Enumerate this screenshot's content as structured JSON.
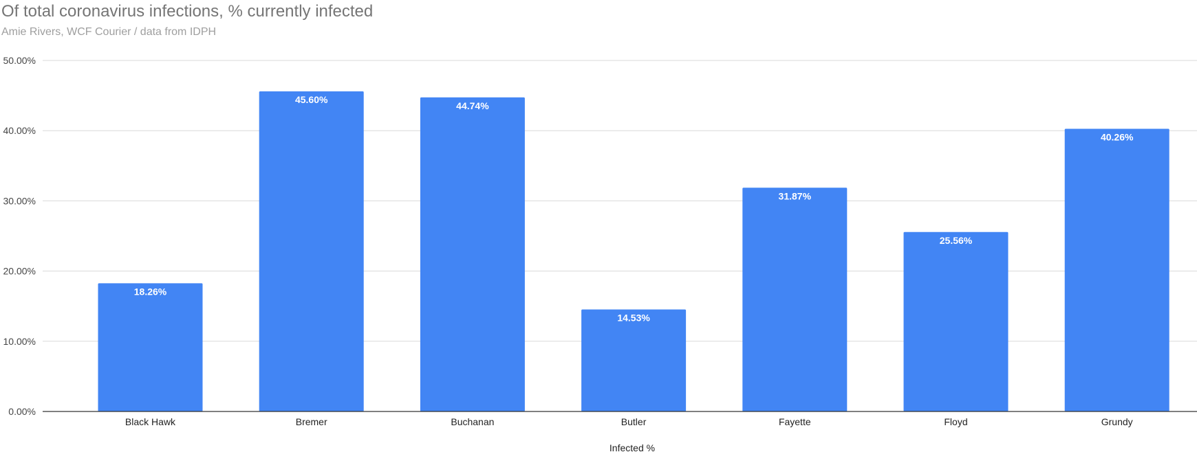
{
  "chart_data": {
    "type": "bar",
    "title": "Of total coronavirus infections, % currently infected",
    "subtitle": "Amie Rivers, WCF Courier / data from IDPH",
    "xlabel": "Infected %",
    "ylabel": "",
    "ylim": [
      0,
      50
    ],
    "yticks": [
      "0.00%",
      "10.00%",
      "20.00%",
      "30.00%",
      "40.00%",
      "50.00%"
    ],
    "categories": [
      "Black Hawk",
      "Bremer",
      "Buchanan",
      "Butler",
      "Fayette",
      "Floyd",
      "Grundy"
    ],
    "values": [
      18.26,
      45.6,
      44.74,
      14.53,
      31.87,
      25.56,
      40.26
    ],
    "data_labels": [
      "18.26%",
      "45.60%",
      "44.74%",
      "14.53%",
      "31.87%",
      "25.56%",
      "40.26%"
    ],
    "bar_color": "#4285f4",
    "grid": true,
    "legend": "none"
  }
}
